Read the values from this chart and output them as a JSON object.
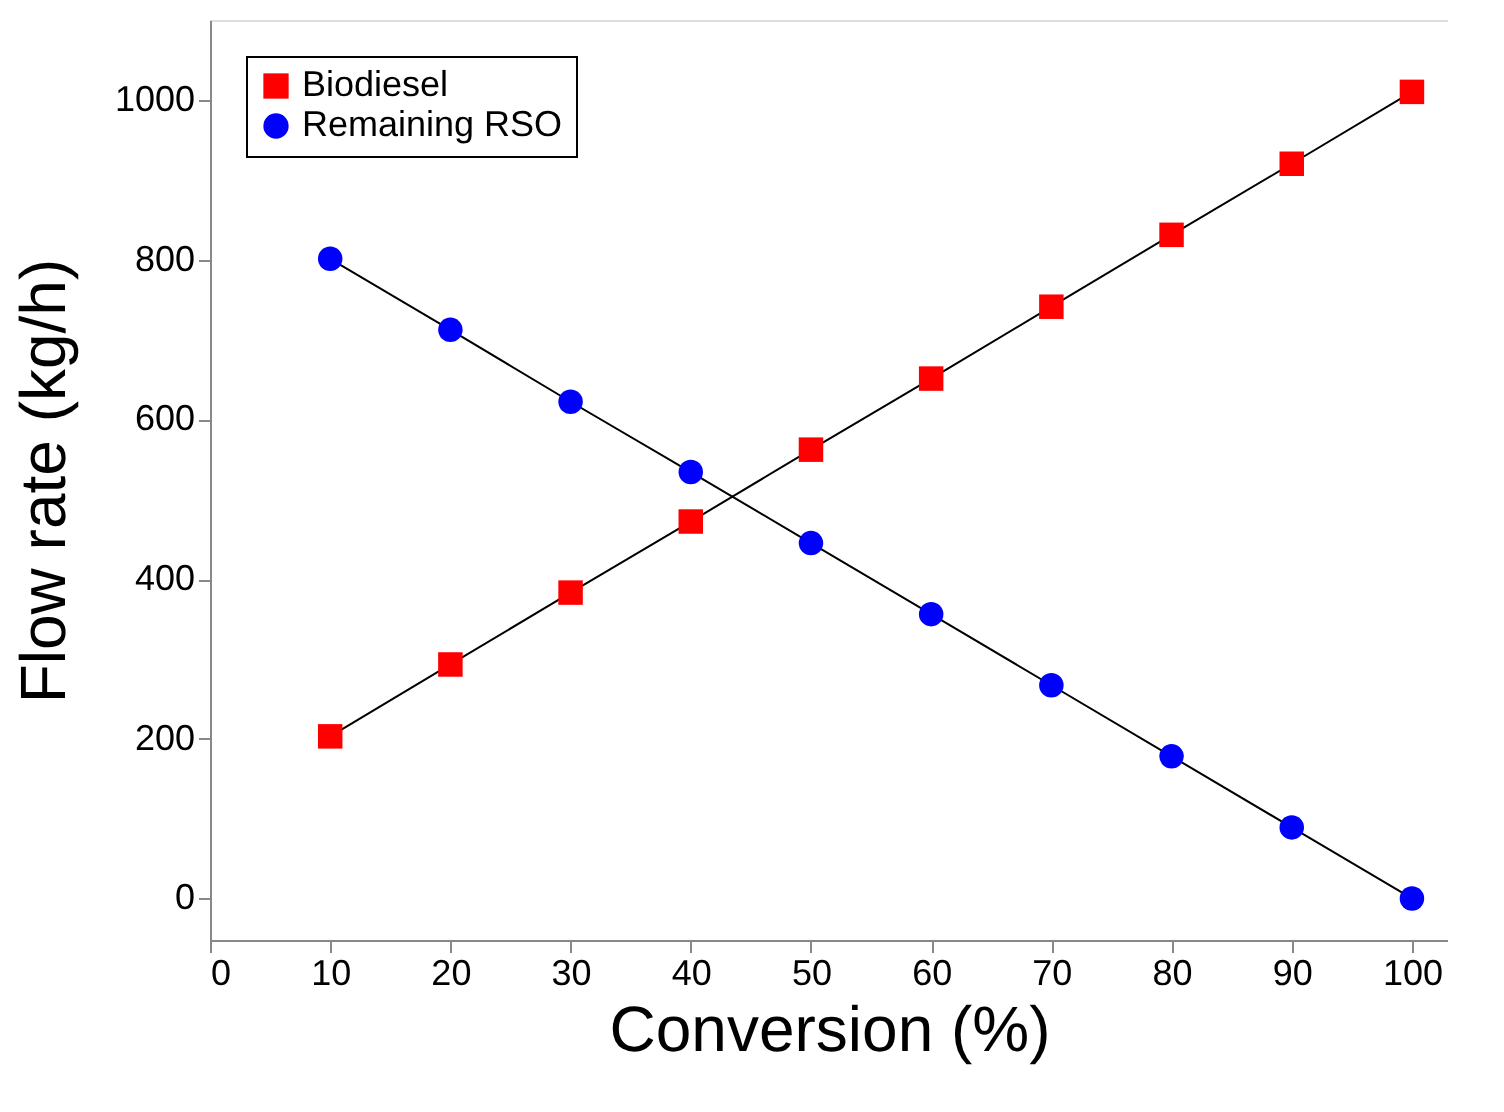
{
  "chart_data": {
    "type": "line",
    "xlabel": "Conversion (%)",
    "ylabel": "Flow rate (kg/h)",
    "x": [
      10,
      20,
      30,
      40,
      50,
      60,
      70,
      80,
      90,
      100
    ],
    "series": [
      {
        "name": "Biodiesel",
        "color": "#ff0000",
        "marker": "square",
        "values": [
          203,
          293,
          383,
          472,
          562,
          651,
          741,
          831,
          920,
          1010
        ]
      },
      {
        "name": "Remaining RSO",
        "color": "#0000ff",
        "marker": "circle",
        "values": [
          801,
          712,
          622,
          534,
          445,
          356,
          267,
          178,
          89,
          0
        ]
      }
    ],
    "xlim": [
      0,
      103
    ],
    "xticks": [
      0,
      10,
      20,
      30,
      40,
      50,
      60,
      70,
      80,
      90,
      100
    ],
    "ylim": [
      -52,
      1100
    ],
    "yticks": [
      0,
      200,
      400,
      600,
      800,
      1000
    ],
    "grid": false,
    "legend": "top left",
    "line_style": "solid"
  }
}
